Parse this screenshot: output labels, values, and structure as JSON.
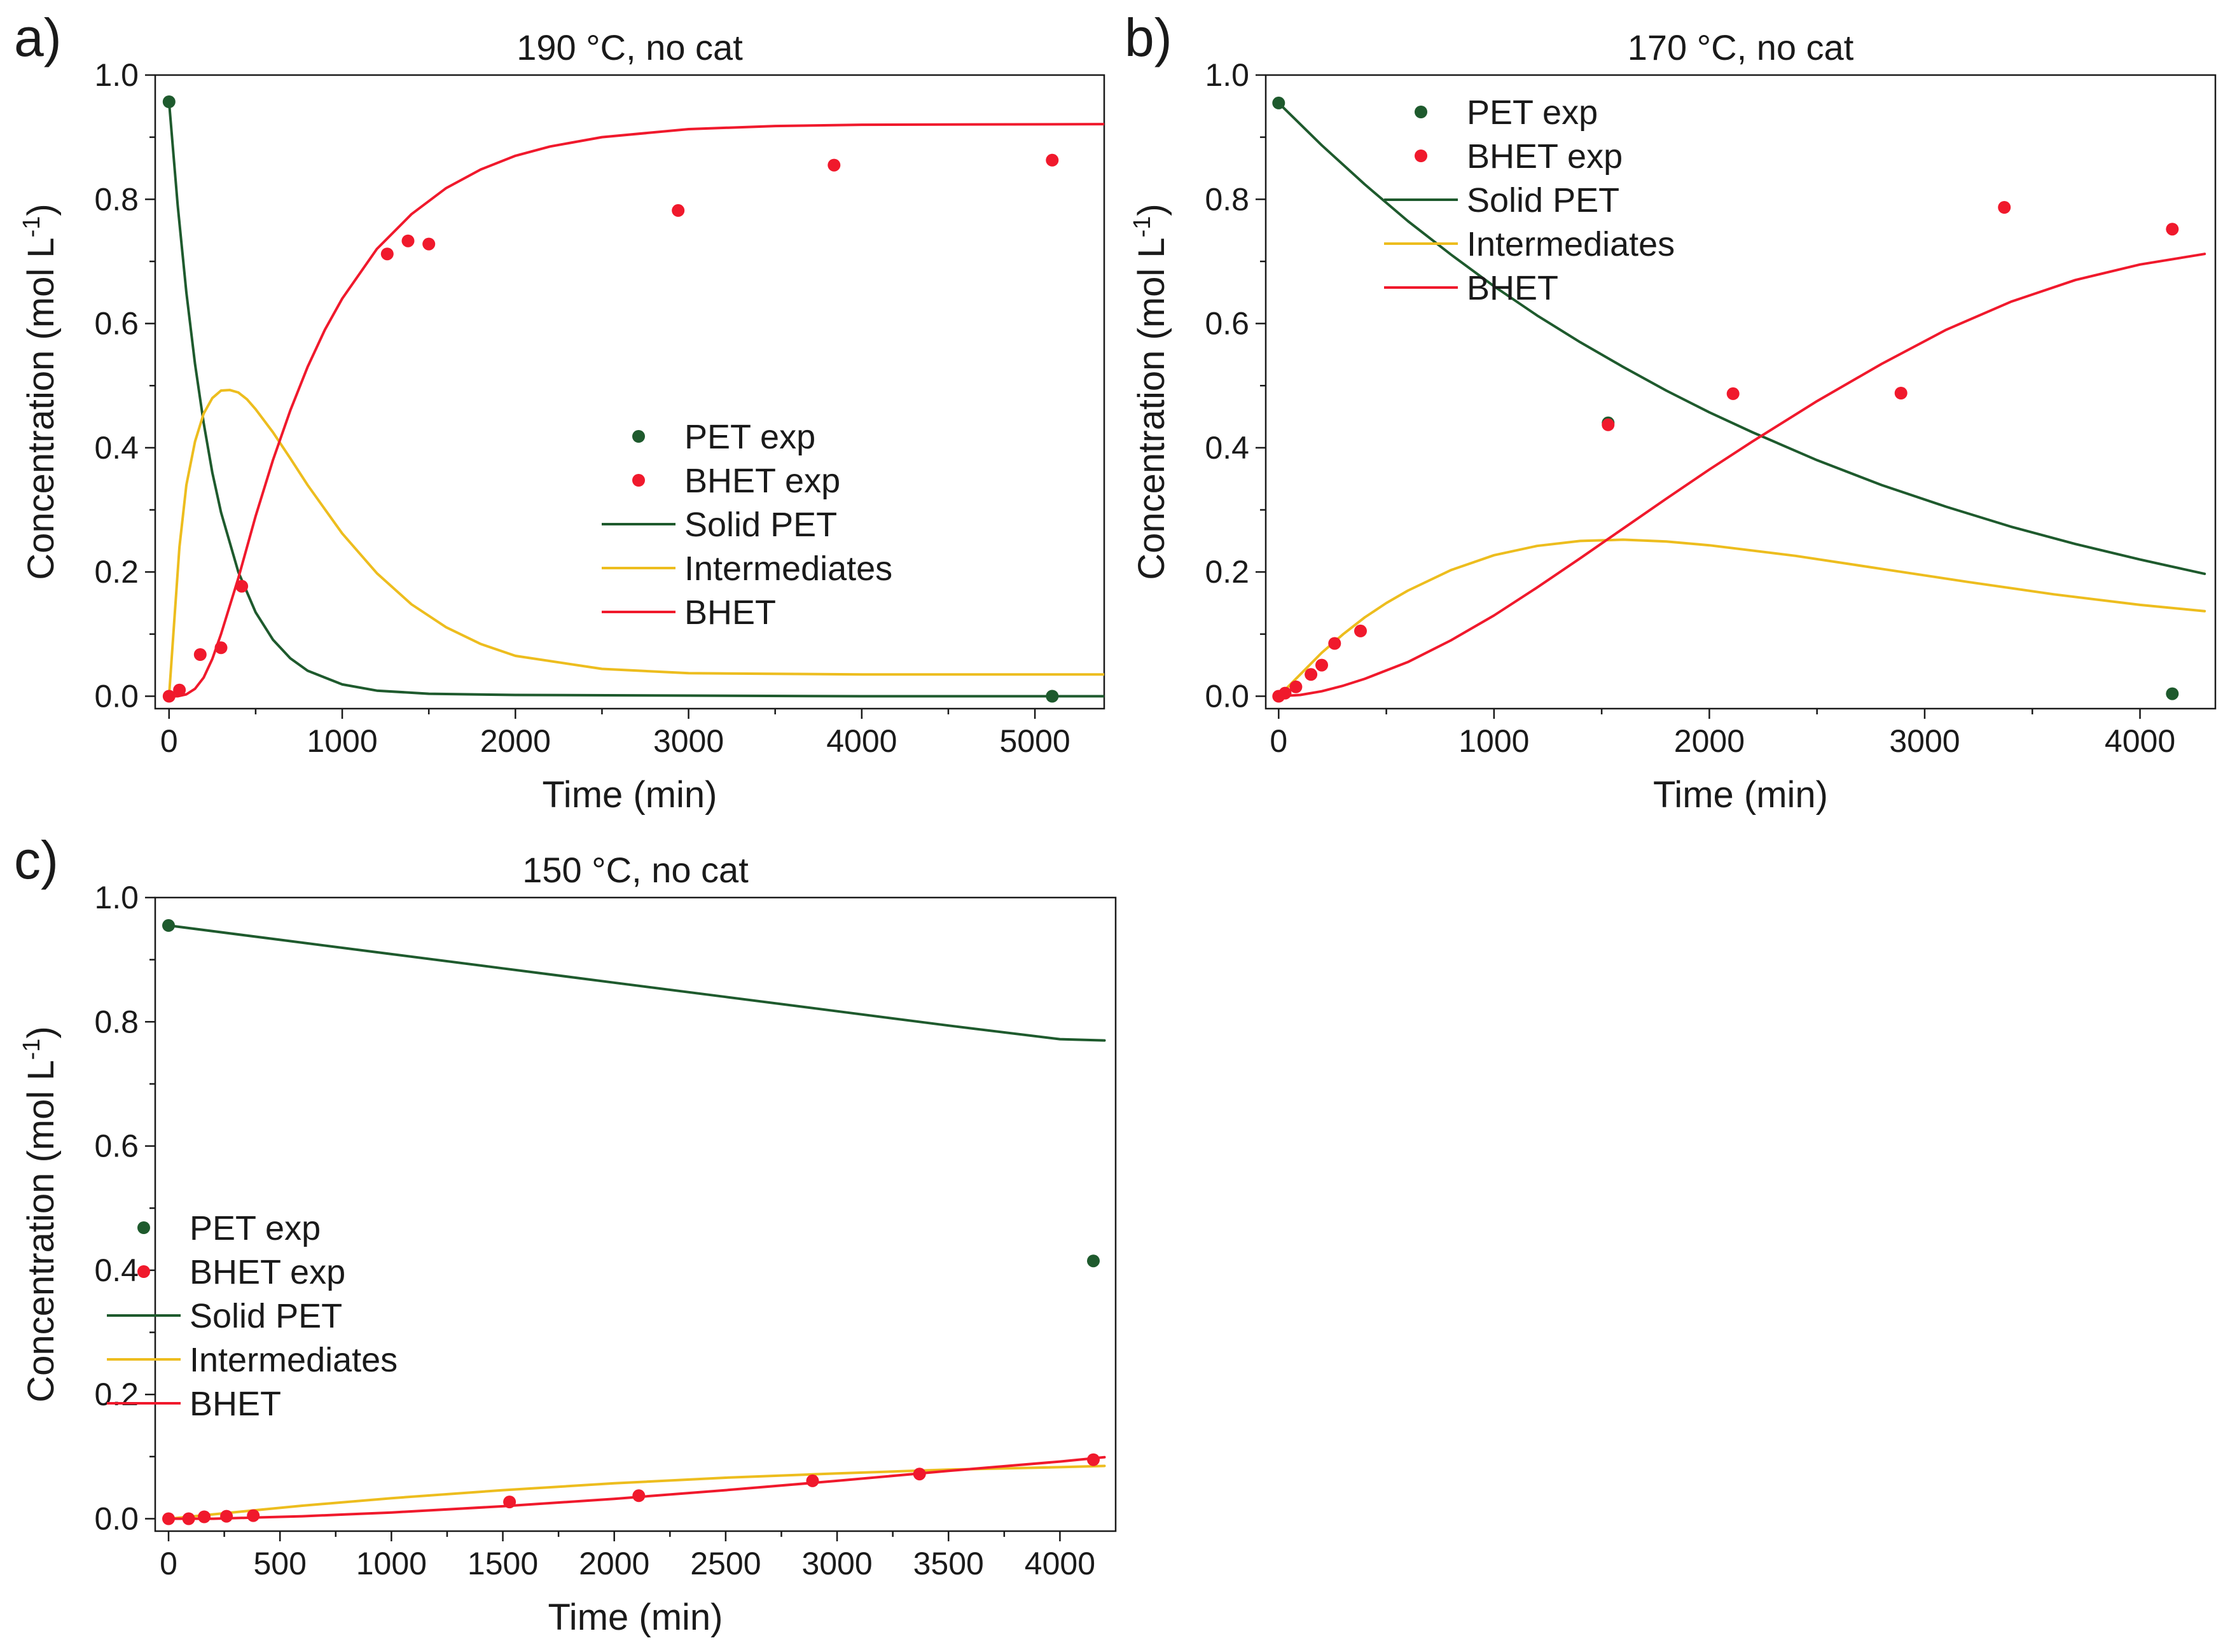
{
  "colors": {
    "pet": "#1e5a2d",
    "bhet": "#f0192c",
    "intermediates": "#edbd1e",
    "axis": "#1a1a1a"
  },
  "chart_data": [
    {
      "panel": "a)",
      "type": "line+scatter",
      "title": "190 °C, no cat",
      "xlabel": "Time (min)",
      "ylabel": "Concentration (mol L",
      "ylabel_sup": "-1",
      "ylabel_end": ")",
      "xlim": [
        -80,
        5400
      ],
      "ylim": [
        -0.02,
        1.0
      ],
      "xticks": [
        0,
        1000,
        2000,
        3000,
        4000,
        5000
      ],
      "xtick_labels": [
        "0",
        "1000",
        "2000",
        "3000",
        "4000",
        "5000"
      ],
      "yticks": [
        0.0,
        0.2,
        0.4,
        0.6,
        0.8,
        1.0
      ],
      "ytick_labels": [
        "0.0",
        "0.2",
        "0.4",
        "0.6",
        "0.8",
        "1.0"
      ],
      "legend_position": "center-right",
      "legend": [
        "PET exp",
        "BHET exp",
        "Solid PET",
        "Intermediates",
        "BHET"
      ],
      "series": [
        {
          "name": "PET exp",
          "kind": "scatter",
          "color_key": "pet",
          "x": [
            0,
            5100
          ],
          "y": [
            0.957,
            0.0
          ]
        },
        {
          "name": "BHET exp",
          "kind": "scatter",
          "color_key": "bhet",
          "x": [
            0,
            60,
            180,
            300,
            420,
            1260,
            1380,
            1500,
            2940,
            3840,
            5100
          ],
          "y": [
            0.0,
            0.01,
            0.067,
            0.078,
            0.177,
            0.712,
            0.733,
            0.728,
            0.782,
            0.855,
            0.863
          ]
        },
        {
          "name": "Solid PET",
          "kind": "line",
          "color_key": "pet",
          "x": [
            0,
            50,
            100,
            150,
            200,
            250,
            300,
            400,
            500,
            600,
            700,
            800,
            1000,
            1200,
            1500,
            2000,
            3000,
            4000,
            5400
          ],
          "y": [
            0.957,
            0.79,
            0.65,
            0.535,
            0.44,
            0.36,
            0.296,
            0.2,
            0.135,
            0.091,
            0.061,
            0.041,
            0.019,
            0.009,
            0.004,
            0.002,
            0.001,
            0.0,
            0.0
          ]
        },
        {
          "name": "Intermediates",
          "kind": "line",
          "color_key": "intermediates",
          "x": [
            0,
            30,
            60,
            100,
            150,
            200,
            250,
            300,
            350,
            400,
            450,
            500,
            600,
            700,
            800,
            1000,
            1200,
            1400,
            1600,
            1800,
            2000,
            2500,
            3000,
            4000,
            5400
          ],
          "y": [
            0.0,
            0.12,
            0.24,
            0.34,
            0.41,
            0.455,
            0.48,
            0.492,
            0.493,
            0.489,
            0.478,
            0.462,
            0.425,
            0.383,
            0.34,
            0.262,
            0.198,
            0.148,
            0.111,
            0.084,
            0.065,
            0.044,
            0.037,
            0.035,
            0.035
          ]
        },
        {
          "name": "BHET",
          "kind": "line",
          "color_key": "bhet",
          "x": [
            0,
            50,
            100,
            150,
            200,
            250,
            300,
            400,
            500,
            600,
            700,
            800,
            900,
            1000,
            1200,
            1400,
            1600,
            1800,
            2000,
            2200,
            2500,
            3000,
            3500,
            4000,
            5400
          ],
          "y": [
            0.0,
            0.0,
            0.003,
            0.012,
            0.03,
            0.06,
            0.1,
            0.19,
            0.29,
            0.38,
            0.46,
            0.53,
            0.59,
            0.64,
            0.72,
            0.776,
            0.818,
            0.848,
            0.87,
            0.885,
            0.9,
            0.913,
            0.918,
            0.92,
            0.921
          ]
        }
      ]
    },
    {
      "panel": "b)",
      "type": "line+scatter",
      "title": "170 °C, no cat",
      "xlabel": "Time (min)",
      "ylabel": "Concentration (mol L",
      "ylabel_sup": "-1",
      "ylabel_end": ")",
      "xlim": [
        -60,
        4350
      ],
      "ylim": [
        -0.02,
        1.0
      ],
      "xticks": [
        0,
        1000,
        2000,
        3000,
        4000
      ],
      "xtick_labels": [
        "0",
        "1000",
        "2000",
        "3000",
        "4000"
      ],
      "yticks": [
        0.0,
        0.2,
        0.4,
        0.6,
        0.8,
        1.0
      ],
      "ytick_labels": [
        "0.0",
        "0.2",
        "0.4",
        "0.6",
        "0.8",
        "1.0"
      ],
      "legend_position": "top-left",
      "legend": [
        "PET exp",
        "BHET exp",
        "Solid PET",
        "Intermediates",
        "BHET"
      ],
      "series": [
        {
          "name": "PET exp",
          "kind": "scatter",
          "color_key": "pet",
          "x": [
            0,
            1530,
            4150
          ],
          "y": [
            0.955,
            0.44,
            0.004
          ]
        },
        {
          "name": "BHET exp",
          "kind": "scatter",
          "color_key": "bhet",
          "x": [
            0,
            30,
            80,
            150,
            200,
            260,
            380,
            1530,
            2110,
            2890,
            3370,
            4150
          ],
          "y": [
            0.0,
            0.005,
            0.015,
            0.035,
            0.05,
            0.085,
            0.105,
            0.437,
            0.487,
            0.488,
            0.787,
            0.752
          ]
        },
        {
          "name": "Solid PET",
          "kind": "line",
          "color_key": "pet",
          "x": [
            0,
            200,
            400,
            600,
            800,
            1000,
            1200,
            1400,
            1600,
            1800,
            2000,
            2200,
            2500,
            2800,
            3100,
            3400,
            3700,
            4000,
            4300
          ],
          "y": [
            0.955,
            0.887,
            0.824,
            0.765,
            0.711,
            0.66,
            0.613,
            0.57,
            0.53,
            0.492,
            0.457,
            0.425,
            0.38,
            0.34,
            0.305,
            0.273,
            0.245,
            0.22,
            0.197
          ]
        },
        {
          "name": "Intermediates",
          "kind": "line",
          "color_key": "intermediates",
          "x": [
            0,
            100,
            200,
            300,
            400,
            500,
            600,
            800,
            1000,
            1200,
            1400,
            1600,
            1800,
            2000,
            2400,
            2800,
            3200,
            3600,
            4000,
            4300
          ],
          "y": [
            0.0,
            0.035,
            0.07,
            0.1,
            0.127,
            0.15,
            0.17,
            0.203,
            0.227,
            0.242,
            0.25,
            0.252,
            0.249,
            0.243,
            0.226,
            0.205,
            0.184,
            0.164,
            0.147,
            0.137
          ]
        },
        {
          "name": "BHET",
          "kind": "line",
          "color_key": "bhet",
          "x": [
            0,
            100,
            200,
            300,
            400,
            600,
            800,
            1000,
            1200,
            1400,
            1600,
            1800,
            2000,
            2200,
            2500,
            2800,
            3100,
            3400,
            3700,
            4000,
            4300
          ],
          "y": [
            0.0,
            0.002,
            0.008,
            0.017,
            0.028,
            0.055,
            0.09,
            0.13,
            0.175,
            0.222,
            0.27,
            0.318,
            0.365,
            0.41,
            0.475,
            0.535,
            0.59,
            0.635,
            0.67,
            0.695,
            0.712
          ]
        }
      ]
    },
    {
      "panel": "c)",
      "type": "line+scatter",
      "title": "150 °C, no cat",
      "xlabel": "Time (min)",
      "ylabel": "Concentration (mol L",
      "ylabel_sup": "-1",
      "ylabel_end": ")",
      "xlim": [
        -60,
        4250
      ],
      "ylim": [
        -0.02,
        1.0
      ],
      "xticks": [
        0,
        500,
        1000,
        1500,
        2000,
        2500,
        3000,
        3500,
        4000
      ],
      "xtick_labels": [
        "0",
        "500",
        "1000",
        "1500",
        "2000",
        "2500",
        "3000",
        "3500",
        "4000"
      ],
      "yticks": [
        0.0,
        0.2,
        0.4,
        0.6,
        0.8,
        1.0
      ],
      "ytick_labels": [
        "0.0",
        "0.2",
        "0.4",
        "0.6",
        "0.8",
        "1.0"
      ],
      "legend_position": "center-left",
      "legend": [
        "PET exp",
        "BHET exp",
        "Solid PET",
        "Intermediates",
        "BHET"
      ],
      "series": [
        {
          "name": "PET exp",
          "kind": "scatter",
          "color_key": "pet",
          "x": [
            0,
            4150
          ],
          "y": [
            0.955,
            0.415
          ]
        },
        {
          "name": "BHET exp",
          "kind": "scatter",
          "color_key": "bhet",
          "x": [
            0,
            90,
            160,
            260,
            380,
            1530,
            2110,
            2890,
            3370,
            4150
          ],
          "y": [
            0.0,
            0.0,
            0.003,
            0.004,
            0.005,
            0.027,
            0.037,
            0.061,
            0.072,
            0.095
          ]
        },
        {
          "name": "Solid PET",
          "kind": "line",
          "color_key": "pet",
          "x": [
            0,
            500,
            1000,
            1500,
            2000,
            2500,
            3000,
            3500,
            4000,
            4200
          ],
          "y": [
            0.955,
            0.932,
            0.909,
            0.886,
            0.863,
            0.84,
            0.817,
            0.794,
            0.772,
            0.77
          ]
        },
        {
          "name": "Intermediates",
          "kind": "line",
          "color_key": "intermediates",
          "x": [
            0,
            200,
            400,
            600,
            800,
            1000,
            1500,
            2000,
            2500,
            3000,
            3500,
            4000,
            4200
          ],
          "y": [
            0.0,
            0.007,
            0.014,
            0.021,
            0.027,
            0.033,
            0.046,
            0.057,
            0.066,
            0.073,
            0.079,
            0.083,
            0.085
          ]
        },
        {
          "name": "BHET",
          "kind": "line",
          "color_key": "bhet",
          "x": [
            0,
            200,
            400,
            600,
            800,
            1000,
            1500,
            2000,
            2500,
            3000,
            3500,
            4000,
            4200
          ],
          "y": [
            0.0,
            0.0,
            0.002,
            0.004,
            0.007,
            0.01,
            0.02,
            0.032,
            0.046,
            0.061,
            0.077,
            0.092,
            0.099
          ]
        }
      ]
    }
  ]
}
